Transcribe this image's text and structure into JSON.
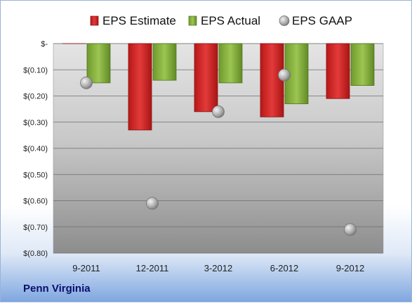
{
  "chart_data": {
    "type": "bar",
    "categories": [
      "9-2011",
      "12-2011",
      "3-2012",
      "6-2012",
      "9-2012"
    ],
    "series": [
      {
        "name": "EPS Estimate",
        "kind": "bar",
        "color": "#d42a2a",
        "values": [
          0.0,
          -0.33,
          -0.26,
          -0.28,
          -0.21
        ]
      },
      {
        "name": "EPS Actual",
        "kind": "bar",
        "color": "#8fb843",
        "values": [
          -0.15,
          -0.14,
          -0.15,
          -0.23,
          -0.16
        ]
      },
      {
        "name": "EPS GAAP",
        "kind": "scatter",
        "color": "#a8a8a8",
        "values": [
          -0.15,
          -0.61,
          -0.26,
          -0.12,
          -0.71
        ]
      }
    ],
    "y_ticks": [
      {
        "value": 0.0,
        "label": "$-"
      },
      {
        "value": -0.1,
        "label": "$(0.10)"
      },
      {
        "value": -0.2,
        "label": "$(0.20)"
      },
      {
        "value": -0.3,
        "label": "$(0.30)"
      },
      {
        "value": -0.4,
        "label": "$(0.40)"
      },
      {
        "value": -0.5,
        "label": "$(0.50)"
      },
      {
        "value": -0.6,
        "label": "$(0.60)"
      },
      {
        "value": -0.7,
        "label": "$(0.70)"
      },
      {
        "value": -0.8,
        "label": "$(0.80)"
      }
    ],
    "ylim": [
      -0.8,
      0.0
    ],
    "grid": true,
    "legend_position": "top"
  },
  "company": "Penn Virginia"
}
